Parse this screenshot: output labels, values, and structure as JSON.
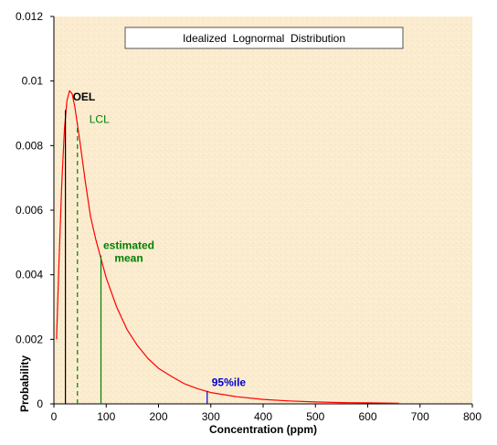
{
  "chart_data": {
    "type": "line",
    "title": "Idealized  Lognormal  Distribution",
    "xlabel": "Concentration (ppm)",
    "ylabel": "Probability",
    "xlim": [
      0,
      800
    ],
    "ylim": [
      0,
      0.012
    ],
    "x_ticks": [
      "0",
      "100",
      "200",
      "300",
      "400",
      "500",
      "600",
      "700",
      "800"
    ],
    "y_ticks": [
      "0",
      "0.002",
      "0.004",
      "0.006",
      "0.008",
      "0.01",
      "0.012"
    ],
    "grid": false,
    "series": [
      {
        "color": "#ff0000",
        "points": [
          [
            5,
            0.002
          ],
          [
            10,
            0.0045
          ],
          [
            15,
            0.0068
          ],
          [
            20,
            0.0085
          ],
          [
            25,
            0.0094
          ],
          [
            30,
            0.0097
          ],
          [
            35,
            0.0096
          ],
          [
            40,
            0.0092
          ],
          [
            50,
            0.0081
          ],
          [
            60,
            0.0069
          ],
          [
            70,
            0.0058
          ],
          [
            80,
            0.0051
          ],
          [
            90,
            0.0045
          ],
          [
            100,
            0.0039
          ],
          [
            120,
            0.003
          ],
          [
            140,
            0.0023
          ],
          [
            160,
            0.0018
          ],
          [
            180,
            0.0014
          ],
          [
            200,
            0.0011
          ],
          [
            225,
            0.00085
          ],
          [
            250,
            0.00062
          ],
          [
            275,
            0.00047
          ],
          [
            300,
            0.00035
          ],
          [
            350,
            0.00022
          ],
          [
            400,
            0.00014
          ],
          [
            450,
            9e-05
          ],
          [
            500,
            6e-05
          ],
          [
            550,
            4e-05
          ],
          [
            600,
            3e-05
          ],
          [
            660,
            2e-05
          ]
        ]
      }
    ],
    "markers": [
      {
        "label": "OEL",
        "x": 22,
        "y": 0.0091,
        "color": "#000000",
        "style": "solid"
      },
      {
        "label": "LCL",
        "x": 45,
        "y": 0.0087,
        "color": "#008000",
        "style": "dashed"
      },
      {
        "label": "estimated mean",
        "label_lines": [
          "estimated",
          "mean"
        ],
        "x": 90,
        "y": 0.0046,
        "color": "#008000",
        "style": "solid"
      },
      {
        "label": "95%ile",
        "x": 293,
        "y": 0.0004,
        "color": "#0000cc",
        "style": "solid"
      }
    ],
    "colors": {
      "background": "#fdf0d5",
      "curve": "#ff0000"
    }
  }
}
